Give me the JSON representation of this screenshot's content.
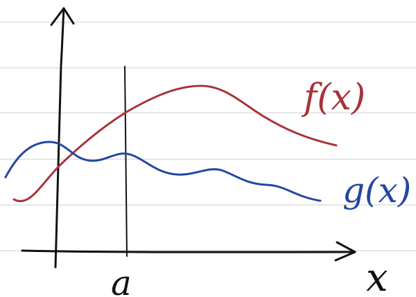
{
  "labels": {
    "f": "f(x)",
    "g": "g(x)",
    "x_axis": "x",
    "a_marker": "a"
  },
  "colors": {
    "paper": "#ffffff",
    "ruled_line": "#d6d6d6",
    "axes": "#111111",
    "f_curve": "#a8333a",
    "g_curve": "#2346a0"
  }
}
